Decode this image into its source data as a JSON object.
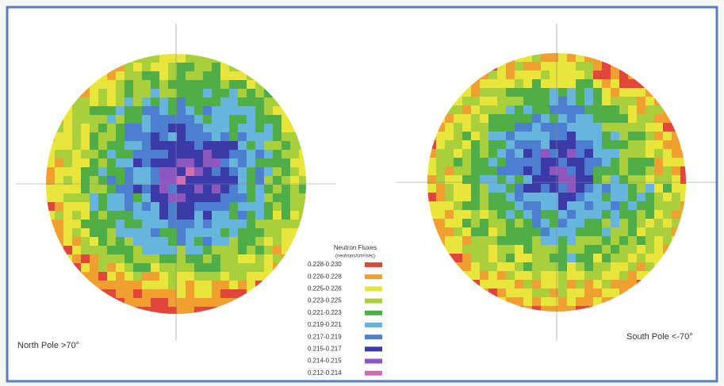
{
  "maps": [
    {
      "label": "North Pole >70°"
    },
    {
      "label": "South Pole <-70°"
    }
  ],
  "legend": {
    "title": "Neutron Fluxes",
    "subtitle": "(neutrons/cm²/sec)",
    "items": [
      {
        "label": "0.228-0.230",
        "color": "#e2453a"
      },
      {
        "label": "0.226-0.228",
        "color": "#f0a030"
      },
      {
        "label": "0.225-0.226",
        "color": "#e8e63a"
      },
      {
        "label": "0.223-0.225",
        "color": "#a9cf3c"
      },
      {
        "label": "0.221-0.223",
        "color": "#4fae48"
      },
      {
        "label": "0.219-0.221",
        "color": "#67b4dc"
      },
      {
        "label": "0.217-0.219",
        "color": "#4c7fd0"
      },
      {
        "label": "0.215-0.217",
        "color": "#3b3aa8"
      },
      {
        "label": "0.214-0.215",
        "color": "#8e57c0"
      },
      {
        "label": "0.212-0.214",
        "color": "#d06fb0"
      }
    ]
  }
}
